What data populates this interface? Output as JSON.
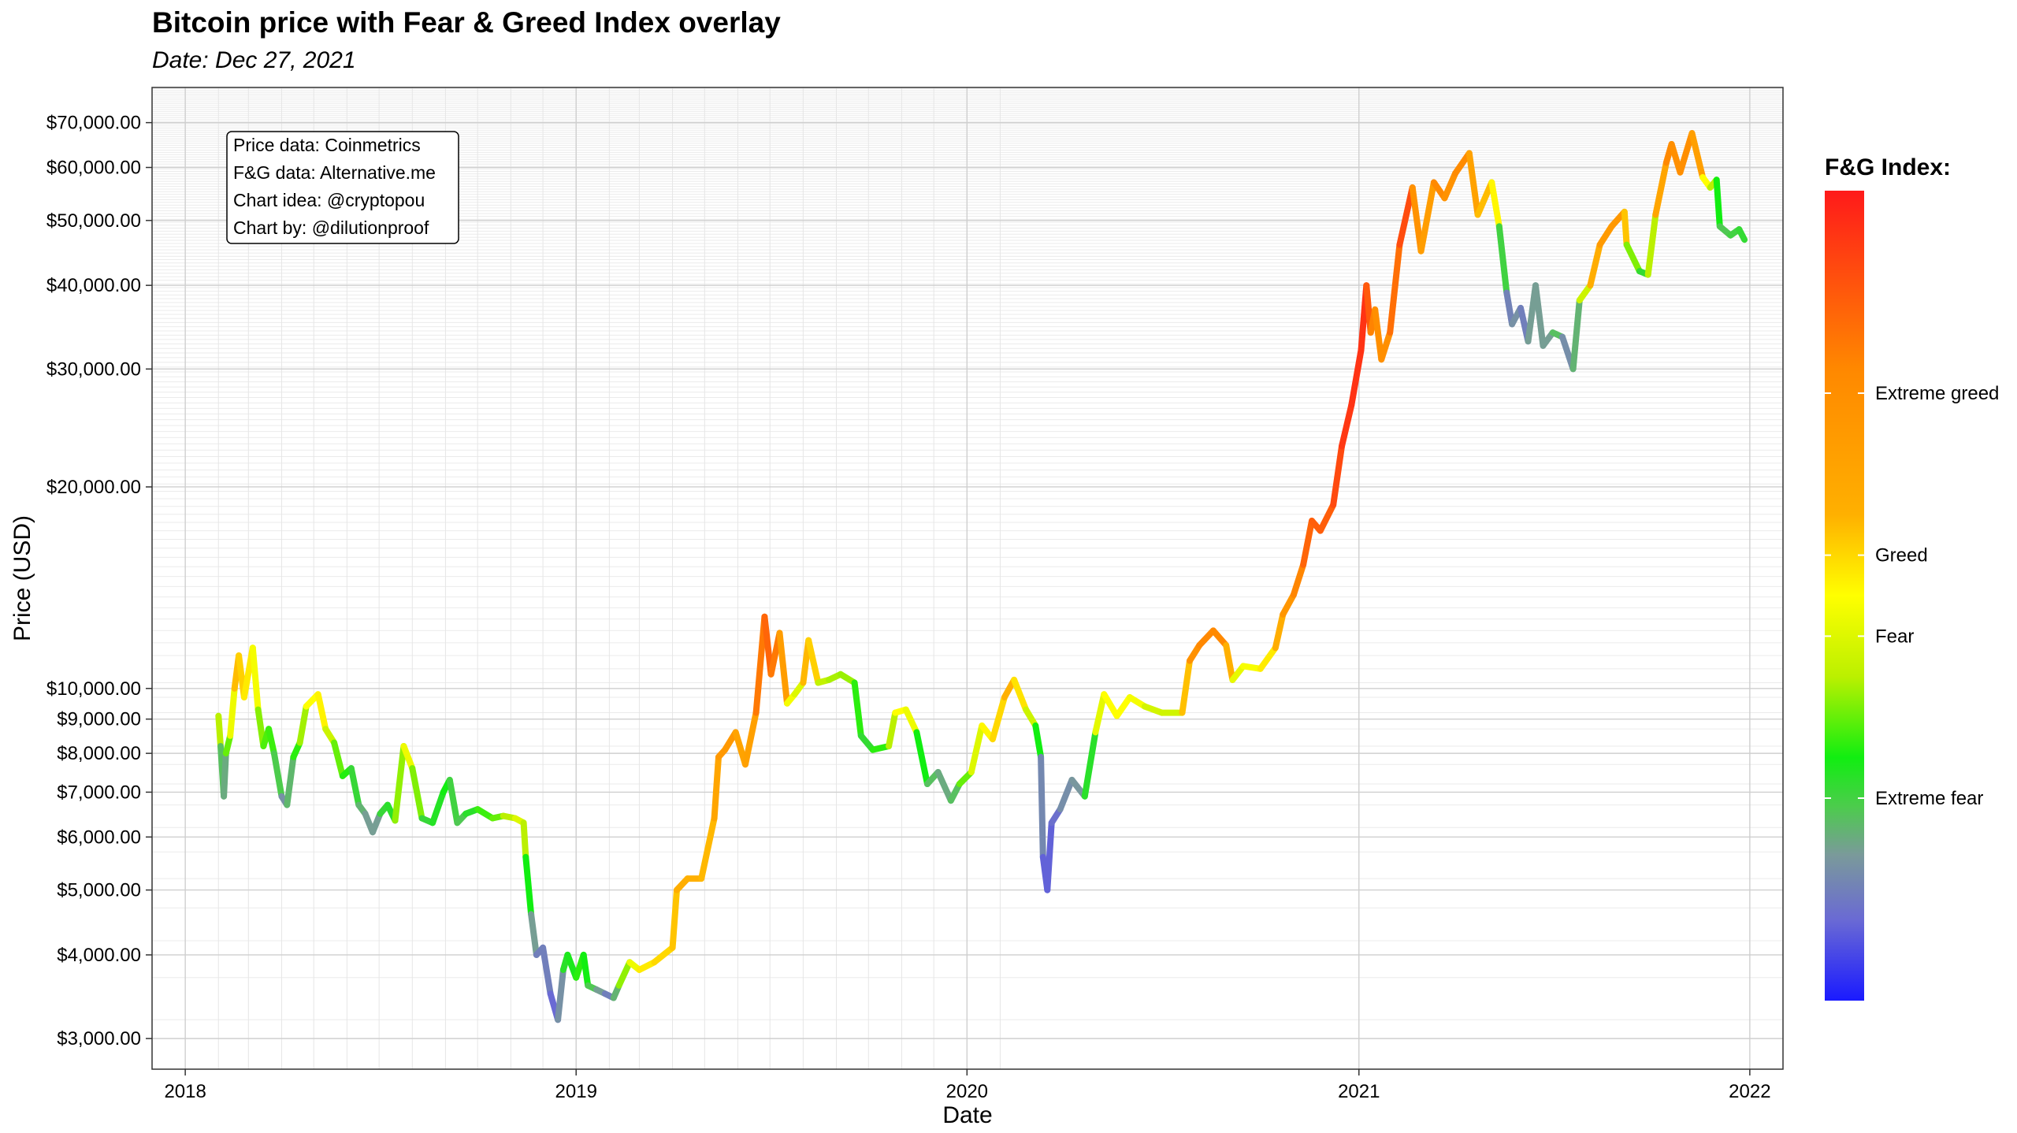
{
  "chart_data": {
    "type": "line",
    "title": "Bitcoin price with Fear & Greed Index overlay",
    "subtitle": "Date: Dec 27, 2021",
    "xlabel": "Date",
    "ylabel": "Price (USD)",
    "xlim": [
      "2017-12-01",
      "2022-02-01"
    ],
    "ylim": [
      2700,
      79000
    ],
    "yscale": "log",
    "grid": true,
    "x_ticks": [
      "2018",
      "2019",
      "2020",
      "2021",
      "2022"
    ],
    "y_ticks": [
      {
        "value": 3000,
        "label": "$3,000.00"
      },
      {
        "value": 4000,
        "label": "$4,000.00"
      },
      {
        "value": 5000,
        "label": "$5,000.00"
      },
      {
        "value": 6000,
        "label": "$6,000.00"
      },
      {
        "value": 7000,
        "label": "$7,000.00"
      },
      {
        "value": 8000,
        "label": "$8,000.00"
      },
      {
        "value": 9000,
        "label": "$9,000.00"
      },
      {
        "value": 10000,
        "label": "$10,000.00"
      },
      {
        "value": 20000,
        "label": "$20,000.00"
      },
      {
        "value": 30000,
        "label": "$30,000.00"
      },
      {
        "value": 40000,
        "label": "$40,000.00"
      },
      {
        "value": 50000,
        "label": "$50,000.00"
      },
      {
        "value": 60000,
        "label": "$60,000.00"
      },
      {
        "value": 70000,
        "label": "$70,000.00"
      }
    ],
    "source_box": [
      "Price data: Coinmetrics",
      "F&G data: Alternative.me",
      "Chart idea: @cryptopou",
      "Chart by: @dilutionproof"
    ],
    "color_legend": {
      "title": "F&G Index:",
      "labels": [
        {
          "text": "Extreme greed",
          "value": 75
        },
        {
          "text": "Greed",
          "value": 55
        },
        {
          "text": "Fear",
          "value": 45
        },
        {
          "text": "Extreme fear",
          "value": 25
        }
      ],
      "range": [
        0,
        100
      ],
      "stops": [
        {
          "value": 0,
          "color": "#1a1aff"
        },
        {
          "value": 10,
          "color": "#6a6ad4"
        },
        {
          "value": 18,
          "color": "#7a9a9a"
        },
        {
          "value": 24,
          "color": "#4ccc4c"
        },
        {
          "value": 30,
          "color": "#11ee11"
        },
        {
          "value": 40,
          "color": "#bbf000"
        },
        {
          "value": 50,
          "color": "#ffff00"
        },
        {
          "value": 60,
          "color": "#ffb000"
        },
        {
          "value": 78,
          "color": "#ff8800"
        },
        {
          "value": 100,
          "color": "#ff1a1a"
        }
      ]
    },
    "series": [
      {
        "points": [
          [
            "2018-02-01",
            9100,
            45
          ],
          [
            "2018-02-03",
            8200,
            35
          ],
          [
            "2018-02-06",
            6900,
            10
          ],
          [
            "2018-02-08",
            8000,
            30
          ],
          [
            "2018-02-12",
            8500,
            40
          ],
          [
            "2018-02-16",
            10000,
            55
          ],
          [
            "2018-02-20",
            11200,
            62
          ],
          [
            "2018-02-25",
            9700,
            50
          ],
          [
            "2018-03-05",
            11500,
            55
          ],
          [
            "2018-03-10",
            9300,
            42
          ],
          [
            "2018-03-15",
            8200,
            32
          ],
          [
            "2018-03-20",
            8700,
            35
          ],
          [
            "2018-03-25",
            8000,
            30
          ],
          [
            "2018-04-01",
            6900,
            18
          ],
          [
            "2018-04-06",
            6700,
            15
          ],
          [
            "2018-04-12",
            7900,
            28
          ],
          [
            "2018-04-18",
            8300,
            35
          ],
          [
            "2018-04-24",
            9400,
            42
          ],
          [
            "2018-05-05",
            9800,
            58
          ],
          [
            "2018-05-12",
            8700,
            45
          ],
          [
            "2018-05-20",
            8300,
            40
          ],
          [
            "2018-05-28",
            7400,
            30
          ],
          [
            "2018-06-05",
            7600,
            32
          ],
          [
            "2018-06-12",
            6700,
            20
          ],
          [
            "2018-06-18",
            6500,
            22
          ],
          [
            "2018-06-25",
            6100,
            15
          ],
          [
            "2018-07-02",
            6500,
            22
          ],
          [
            "2018-07-09",
            6700,
            30
          ],
          [
            "2018-07-16",
            6350,
            25
          ],
          [
            "2018-07-24",
            8200,
            50
          ],
          [
            "2018-08-01",
            7600,
            45
          ],
          [
            "2018-08-10",
            6400,
            28
          ],
          [
            "2018-08-20",
            6300,
            24
          ],
          [
            "2018-08-30",
            7000,
            32
          ],
          [
            "2018-09-05",
            7300,
            28
          ],
          [
            "2018-09-12",
            6300,
            22
          ],
          [
            "2018-09-20",
            6500,
            25
          ],
          [
            "2018-10-01",
            6600,
            30
          ],
          [
            "2018-10-15",
            6400,
            35
          ],
          [
            "2018-10-25",
            6450,
            35
          ],
          [
            "2018-11-05",
            6400,
            45
          ],
          [
            "2018-11-13",
            6300,
            45
          ],
          [
            "2018-11-15",
            5600,
            35
          ],
          [
            "2018-11-20",
            4600,
            25
          ],
          [
            "2018-11-25",
            4000,
            12
          ],
          [
            "2018-12-01",
            4100,
            15
          ],
          [
            "2018-12-08",
            3500,
            12
          ],
          [
            "2018-12-15",
            3200,
            8
          ],
          [
            "2018-12-20",
            3800,
            25
          ],
          [
            "2018-12-24",
            4000,
            30
          ],
          [
            "2019-01-01",
            3700,
            28
          ],
          [
            "2019-01-08",
            4000,
            35
          ],
          [
            "2019-01-12",
            3600,
            25
          ],
          [
            "2019-01-20",
            3550,
            22
          ],
          [
            "2019-01-28",
            3500,
            15
          ],
          [
            "2019-02-05",
            3450,
            12
          ],
          [
            "2019-02-10",
            3600,
            30
          ],
          [
            "2019-02-20",
            3900,
            45
          ],
          [
            "2019-03-01",
            3800,
            50
          ],
          [
            "2019-03-15",
            3900,
            55
          ],
          [
            "2019-04-01",
            4100,
            55
          ],
          [
            "2019-04-05",
            5000,
            60
          ],
          [
            "2019-04-15",
            5200,
            62
          ],
          [
            "2019-04-28",
            5200,
            58
          ],
          [
            "2019-05-10",
            6400,
            60
          ],
          [
            "2019-05-14",
            7900,
            70
          ],
          [
            "2019-05-20",
            8100,
            72
          ],
          [
            "2019-05-30",
            8600,
            70
          ],
          [
            "2019-06-08",
            7700,
            62
          ],
          [
            "2019-06-18",
            9200,
            72
          ],
          [
            "2019-06-26",
            12800,
            90
          ],
          [
            "2019-07-02",
            10500,
            80
          ],
          [
            "2019-07-10",
            12100,
            82
          ],
          [
            "2019-07-17",
            9500,
            55
          ],
          [
            "2019-07-24",
            9800,
            42
          ],
          [
            "2019-08-01",
            10200,
            48
          ],
          [
            "2019-08-06",
            11800,
            70
          ],
          [
            "2019-08-15",
            10200,
            42
          ],
          [
            "2019-08-25",
            10300,
            40
          ],
          [
            "2019-09-05",
            10500,
            38
          ],
          [
            "2019-09-18",
            10200,
            38
          ],
          [
            "2019-09-24",
            8500,
            25
          ],
          [
            "2019-10-05",
            8100,
            28
          ],
          [
            "2019-10-20",
            8200,
            35
          ],
          [
            "2019-10-26",
            9200,
            45
          ],
          [
            "2019-11-05",
            9300,
            55
          ],
          [
            "2019-11-15",
            8600,
            40
          ],
          [
            "2019-11-25",
            7200,
            20
          ],
          [
            "2019-12-05",
            7500,
            25
          ],
          [
            "2019-12-17",
            6800,
            15
          ],
          [
            "2019-12-25",
            7200,
            30
          ],
          [
            "2020-01-05",
            7500,
            40
          ],
          [
            "2020-01-15",
            8800,
            50
          ],
          [
            "2020-01-25",
            8400,
            52
          ],
          [
            "2020-02-05",
            9700,
            58
          ],
          [
            "2020-02-14",
            10300,
            62
          ],
          [
            "2020-02-25",
            9300,
            45
          ],
          [
            "2020-03-05",
            8800,
            40
          ],
          [
            "2020-03-10",
            7900,
            20
          ],
          [
            "2020-03-12",
            5600,
            10
          ],
          [
            "2020-03-16",
            5000,
            8
          ],
          [
            "2020-03-20",
            6300,
            10
          ],
          [
            "2020-03-28",
            6600,
            12
          ],
          [
            "2020-04-08",
            7300,
            20
          ],
          [
            "2020-04-20",
            6900,
            15
          ],
          [
            "2020-04-30",
            8600,
            40
          ],
          [
            "2020-05-08",
            9800,
            52
          ],
          [
            "2020-05-20",
            9100,
            48
          ],
          [
            "2020-06-01",
            9700,
            52
          ],
          [
            "2020-06-15",
            9400,
            45
          ],
          [
            "2020-07-01",
            9200,
            42
          ],
          [
            "2020-07-20",
            9200,
            44
          ],
          [
            "2020-07-27",
            11000,
            72
          ],
          [
            "2020-08-05",
            11600,
            76
          ],
          [
            "2020-08-18",
            12200,
            80
          ],
          [
            "2020-08-30",
            11600,
            75
          ],
          [
            "2020-09-05",
            10300,
            45
          ],
          [
            "2020-09-15",
            10800,
            48
          ],
          [
            "2020-10-01",
            10700,
            50
          ],
          [
            "2020-10-15",
            11500,
            55
          ],
          [
            "2020-10-22",
            12900,
            68
          ],
          [
            "2020-11-01",
            13800,
            75
          ],
          [
            "2020-11-10",
            15300,
            82
          ],
          [
            "2020-11-18",
            17800,
            88
          ],
          [
            "2020-11-26",
            17200,
            85
          ],
          [
            "2020-12-08",
            18800,
            88
          ],
          [
            "2020-12-16",
            23000,
            93
          ],
          [
            "2020-12-25",
            26500,
            95
          ],
          [
            "2021-01-03",
            32000,
            95
          ],
          [
            "2021-01-08",
            40000,
            95
          ],
          [
            "2021-01-12",
            34000,
            80
          ],
          [
            "2021-01-16",
            36800,
            78
          ],
          [
            "2021-01-22",
            31000,
            72
          ],
          [
            "2021-01-30",
            34000,
            78
          ],
          [
            "2021-02-08",
            46000,
            88
          ],
          [
            "2021-02-20",
            56000,
            92
          ],
          [
            "2021-02-28",
            45000,
            55
          ],
          [
            "2021-03-12",
            57000,
            82
          ],
          [
            "2021-03-22",
            54000,
            72
          ],
          [
            "2021-04-01",
            58800,
            75
          ],
          [
            "2021-04-14",
            63000,
            78
          ],
          [
            "2021-04-22",
            51000,
            55
          ],
          [
            "2021-05-05",
            57000,
            62
          ],
          [
            "2021-05-12",
            49000,
            40
          ],
          [
            "2021-05-19",
            39000,
            10
          ],
          [
            "2021-05-24",
            35000,
            18
          ],
          [
            "2021-06-01",
            37000,
            15
          ],
          [
            "2021-06-08",
            33000,
            12
          ],
          [
            "2021-06-15",
            40000,
            25
          ],
          [
            "2021-06-22",
            32500,
            12
          ],
          [
            "2021-07-01",
            34000,
            25
          ],
          [
            "2021-07-10",
            33500,
            20
          ],
          [
            "2021-07-20",
            30000,
            12
          ],
          [
            "2021-07-26",
            38000,
            30
          ],
          [
            "2021-08-05",
            40000,
            55
          ],
          [
            "2021-08-14",
            46000,
            68
          ],
          [
            "2021-08-25",
            49000,
            72
          ],
          [
            "2021-09-06",
            51500,
            70
          ],
          [
            "2021-09-08",
            46000,
            45
          ],
          [
            "2021-09-20",
            42000,
            28
          ],
          [
            "2021-09-28",
            41500,
            25
          ],
          [
            "2021-10-05",
            51000,
            55
          ],
          [
            "2021-10-15",
            61000,
            75
          ],
          [
            "2021-10-20",
            65000,
            80
          ],
          [
            "2021-10-28",
            59000,
            70
          ],
          [
            "2021-11-08",
            67500,
            80
          ],
          [
            "2021-11-18",
            58000,
            55
          ],
          [
            "2021-11-25",
            56000,
            45
          ],
          [
            "2021-12-01",
            57500,
            35
          ],
          [
            "2021-12-04",
            49000,
            25
          ],
          [
            "2021-12-14",
            47500,
            22
          ],
          [
            "2021-12-22",
            48500,
            28
          ],
          [
            "2021-12-27",
            46800,
            25
          ]
        ]
      }
    ]
  }
}
